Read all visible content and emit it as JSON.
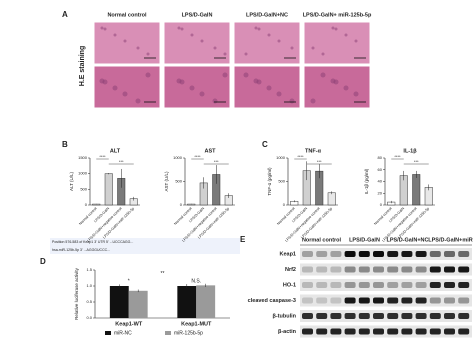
{
  "figure": {
    "panel_labels": [
      "A",
      "B",
      "C",
      "D",
      "E"
    ],
    "he": {
      "row_label": "H.E staining",
      "columns": [
        "Normal control",
        "LPS/D-GalN",
        "LPS/D-GalN+NC",
        "LPS/D-GalN+ miR-125b-5p"
      ]
    },
    "luciferase_sequence": [
      "Position 576-583 of Keap1 3' UTR 5' ...UCCCAGG...",
      "hsa-miR-125b-5p 3' ...AGGGUCCC..."
    ],
    "western": {
      "columns": [
        "Normal control",
        "LPS/D-GalN",
        "LPS/D-GalN+NC",
        "LPS/D-GalN+miR"
      ],
      "rows": [
        "Keap1",
        "Nrf2",
        "HO-1",
        "cleaved caspase-3",
        "β-tubulin",
        "β-actin"
      ]
    }
  },
  "chart_data": [
    {
      "type": "bar",
      "title": "ALT",
      "ylabel": "ALT (U/L)",
      "categories": [
        "Normal control",
        "LPS/D-GalN",
        "LPS/D-GalN+negative control",
        "LPS/D-GalN+miR-125b-5p"
      ],
      "values": [
        30,
        1000,
        850,
        200
      ],
      "errors": [
        5,
        20,
        300,
        60
      ],
      "colors": [
        "#ffffff",
        "#d0d0d0",
        "#7a7a7a",
        "#e8e8e8"
      ],
      "ylim": [
        0,
        1500
      ],
      "yticks": [
        0,
        500,
        1000,
        1500
      ],
      "annotations": [
        "****",
        "***"
      ]
    },
    {
      "type": "bar",
      "title": "AST",
      "ylabel": "AST (U/L)",
      "categories": [
        "Normal control",
        "LPS/D-GalN",
        "LPS/D-GalN+negative control",
        "LPS/D-GalN+miR-125b-5p"
      ],
      "values": [
        20,
        470,
        650,
        200
      ],
      "errors": [
        5,
        120,
        200,
        50
      ],
      "colors": [
        "#ffffff",
        "#d0d0d0",
        "#7a7a7a",
        "#e8e8e8"
      ],
      "ylim": [
        0,
        1000
      ],
      "yticks": [
        0,
        500,
        1000
      ],
      "annotations": [
        "****",
        "***"
      ]
    },
    {
      "type": "bar",
      "title": "TNF-α",
      "ylabel": "TNF-α (pg/ml)",
      "categories": [
        "Normal control",
        "LPS/D-GalN",
        "LPS/D-GalN+negative control",
        "LPS/D-GalN+miR-125b-5p"
      ],
      "values": [
        80,
        730,
        720,
        260
      ],
      "errors": [
        20,
        200,
        150,
        30
      ],
      "colors": [
        "#ffffff",
        "#d0d0d0",
        "#7a7a7a",
        "#e8e8e8"
      ],
      "ylim": [
        0,
        1000
      ],
      "yticks": [
        0,
        500,
        1000
      ],
      "annotations": [
        "****",
        "***"
      ]
    },
    {
      "type": "bar",
      "title": "IL-1β",
      "ylabel": "IL-1β (pg/ml)",
      "categories": [
        "Normal control",
        "LPS/D-GalN",
        "LPS/D-GalN+negative control",
        "LPS/D-GalN+miR-125b-5p"
      ],
      "values": [
        5,
        50,
        52,
        30
      ],
      "errors": [
        2,
        8,
        6,
        5
      ],
      "colors": [
        "#ffffff",
        "#d0d0d0",
        "#7a7a7a",
        "#e8e8e8"
      ],
      "ylim": [
        0,
        80
      ],
      "yticks": [
        0,
        20,
        40,
        60,
        80
      ],
      "annotations": [
        "****",
        "***"
      ]
    },
    {
      "type": "grouped_bar",
      "ylabel": "Relative luciferase activity",
      "categories": [
        "Keap1-WT",
        "Keap1-MUT"
      ],
      "series": [
        {
          "name": "miR-NC",
          "color": "#111111",
          "values": [
            1.0,
            1.0
          ],
          "errors": [
            0.05,
            0.06
          ]
        },
        {
          "name": "miR-125b-5p",
          "color": "#9a9a9a",
          "values": [
            0.85,
            1.02
          ],
          "errors": [
            0.04,
            0.05
          ]
        }
      ],
      "ylim": [
        0,
        1.5
      ],
      "yticks": [
        {
          "value": 0,
          "label": "0.0"
        },
        {
          "value": 0.5,
          "label": "0.5"
        },
        {
          "value": 1,
          "label": "1.0"
        },
        {
          "value": 1.5,
          "label": "1.5"
        }
      ],
      "annotations": [
        "*",
        "N.S.",
        "**"
      ]
    }
  ]
}
